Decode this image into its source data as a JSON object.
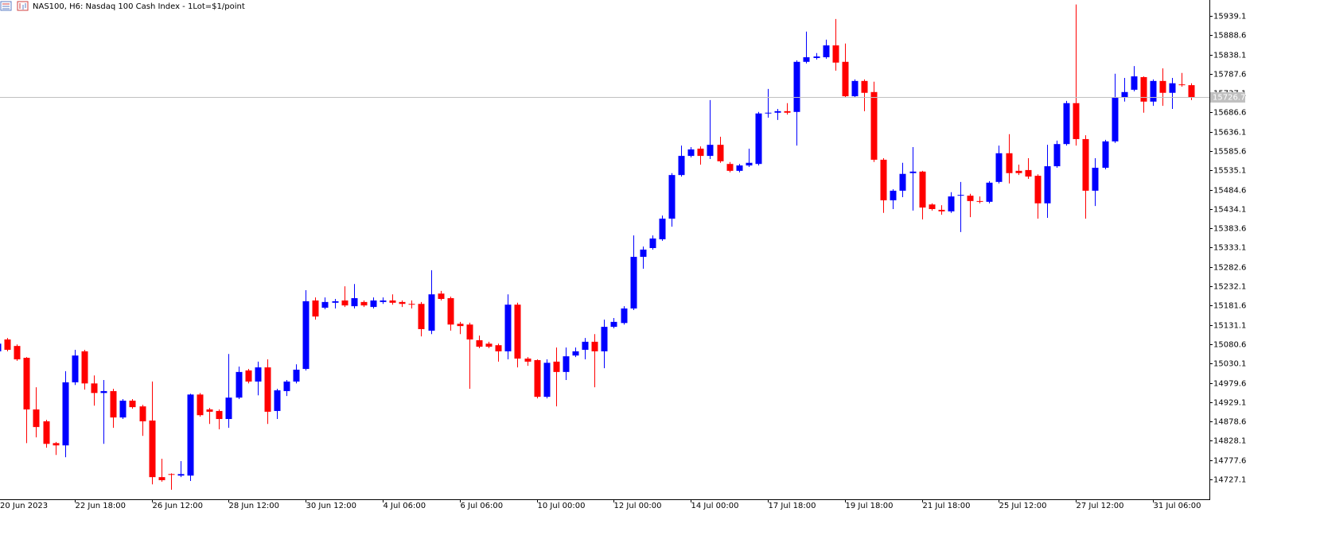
{
  "chart_data": {
    "type": "candlestick",
    "title": "NAS100, H6:  Nasdaq 100 Cash Index - 1Lot=$1/point",
    "up_color": "#0000ff",
    "down_color": "#ff0000",
    "grid": false,
    "bid": 15726.7,
    "ylim": [
      14675.1,
      15980.7
    ],
    "yticks": [
      15939.1,
      15888.6,
      15838.1,
      15787.6,
      15737.1,
      15686.6,
      15636.1,
      15585.6,
      15535.1,
      15484.6,
      15434.1,
      15383.6,
      15333.1,
      15282.6,
      15232.1,
      15181.6,
      15131.1,
      15080.6,
      15030.1,
      14979.6,
      14929.1,
      14878.6,
      14828.1,
      14777.6,
      14727.1
    ],
    "categories": [
      "20 Jun 2023",
      null,
      null,
      null,
      null,
      null,
      null,
      null,
      "22 Jun 18:00",
      null,
      null,
      null,
      null,
      null,
      null,
      null,
      "26 Jun 12:00",
      null,
      null,
      null,
      null,
      null,
      null,
      null,
      "28 Jun 12:00",
      null,
      null,
      null,
      null,
      null,
      null,
      null,
      "30 Jun 12:00",
      null,
      null,
      null,
      null,
      null,
      null,
      null,
      "4 Jul 06:00",
      null,
      null,
      null,
      null,
      null,
      null,
      null,
      "6 Jul 06:00",
      null,
      null,
      null,
      null,
      null,
      null,
      null,
      "10 Jul 00:00",
      null,
      null,
      null,
      null,
      null,
      null,
      null,
      "12 Jul 00:00",
      null,
      null,
      null,
      null,
      null,
      null,
      null,
      "14 Jul 00:00",
      null,
      null,
      null,
      null,
      null,
      null,
      null,
      "17 Jul 18:00",
      null,
      null,
      null,
      null,
      null,
      null,
      null,
      "19 Jul 18:00",
      null,
      null,
      null,
      null,
      null,
      null,
      null,
      "21 Jul 18:00",
      null,
      null,
      null,
      null,
      null,
      null,
      null,
      "25 Jul 12:00",
      null,
      null,
      null,
      null,
      null,
      null,
      null,
      "27 Jul 12:00",
      null,
      null,
      null,
      null,
      null,
      null,
      null,
      "31 Jul 06:00",
      null,
      null,
      null,
      null
    ],
    "ohlc": [
      [
        15062,
        15087,
        15058,
        15082
      ],
      [
        15093,
        15097,
        15062,
        15066
      ],
      [
        15076,
        15080,
        15037,
        15041
      ],
      [
        15045,
        15047,
        14822,
        14910
      ],
      [
        14910,
        14968,
        14837,
        14864
      ],
      [
        14879,
        14883,
        14810,
        14820
      ],
      [
        14822,
        14825,
        14791,
        14816
      ],
      [
        14816,
        15010,
        14785,
        14981
      ],
      [
        14981,
        15066,
        14974,
        15051
      ],
      [
        15062,
        15066,
        14962,
        14978
      ],
      [
        14978,
        14999,
        14920,
        14953
      ],
      [
        14953,
        14987,
        14820,
        14958
      ],
      [
        14958,
        14964,
        14862,
        14889
      ],
      [
        14889,
        14937,
        14885,
        14933
      ],
      [
        14933,
        14937,
        14912,
        14916
      ],
      [
        14918,
        14922,
        14841,
        14879
      ],
      [
        14881,
        14983,
        14714,
        14733
      ],
      [
        14733,
        14781,
        14721,
        14725
      ],
      [
        14741,
        14743,
        14700,
        14739
      ],
      [
        14737,
        14775,
        14733,
        14741
      ],
      [
        14737,
        14951,
        14723,
        14949
      ],
      [
        14949,
        14953,
        14891,
        14895
      ],
      [
        14910,
        14914,
        14872,
        14904
      ],
      [
        14906,
        14910,
        14858,
        14885
      ],
      [
        14885,
        15055,
        14862,
        14941
      ],
      [
        14941,
        15022,
        14937,
        15008
      ],
      [
        15012,
        15016,
        14978,
        14983
      ],
      [
        14983,
        15035,
        14947,
        15020
      ],
      [
        15020,
        15041,
        14872,
        14904
      ],
      [
        14906,
        14964,
        14885,
        14960
      ],
      [
        14958,
        14987,
        14945,
        14983
      ],
      [
        14983,
        15028,
        14978,
        15014
      ],
      [
        15016,
        15222,
        15012,
        15193
      ],
      [
        15195,
        15203,
        15145,
        15153
      ],
      [
        15176,
        15203,
        15172,
        15191
      ],
      [
        15189,
        15199,
        15174,
        15193
      ],
      [
        15195,
        15232,
        15178,
        15182
      ],
      [
        15180,
        15238,
        15174,
        15201
      ],
      [
        15191,
        15195,
        15178,
        15182
      ],
      [
        15178,
        15203,
        15174,
        15195
      ],
      [
        15191,
        15203,
        15186,
        15195
      ],
      [
        15195,
        15211,
        15184,
        15189
      ],
      [
        15191,
        15195,
        15178,
        15186
      ],
      [
        15186,
        15195,
        15174,
        15184
      ],
      [
        15186,
        15191,
        15101,
        15120
      ],
      [
        15116,
        15274,
        15107,
        15211
      ],
      [
        15213,
        15220,
        15195,
        15199
      ],
      [
        15201,
        15205,
        15116,
        15132
      ],
      [
        15134,
        15139,
        15107,
        15128
      ],
      [
        15132,
        15137,
        14964,
        15093
      ],
      [
        15091,
        15103,
        15070,
        15074
      ],
      [
        15082,
        15087,
        15070,
        15074
      ],
      [
        15078,
        15082,
        15035,
        15062
      ],
      [
        15062,
        15211,
        15041,
        15184
      ],
      [
        15184,
        15189,
        15020,
        15043
      ],
      [
        15043,
        15047,
        15024,
        15035
      ],
      [
        15039,
        15041,
        14939,
        14943
      ],
      [
        14943,
        15041,
        14939,
        15032
      ],
      [
        15035,
        15072,
        14918,
        15008
      ],
      [
        15008,
        15072,
        14987,
        15049
      ],
      [
        15051,
        15072,
        15047,
        15062
      ],
      [
        15066,
        15097,
        15041,
        15087
      ],
      [
        15087,
        15107,
        14968,
        15062
      ],
      [
        15062,
        15145,
        15018,
        15126
      ],
      [
        15126,
        15149,
        15122,
        15139
      ],
      [
        15136,
        15180,
        15132,
        15174
      ],
      [
        15174,
        15365,
        15170,
        15309
      ],
      [
        15309,
        15336,
        15278,
        15328
      ],
      [
        15332,
        15365,
        15328,
        15357
      ],
      [
        15355,
        15417,
        15351,
        15409
      ],
      [
        15409,
        15528,
        15388,
        15523
      ],
      [
        15523,
        15600,
        15519,
        15573
      ],
      [
        15573,
        15596,
        15569,
        15590
      ],
      [
        15592,
        15598,
        15550,
        15573
      ],
      [
        15573,
        15719,
        15565,
        15602
      ],
      [
        15602,
        15623,
        15555,
        15559
      ],
      [
        15552,
        15557,
        15530,
        15534
      ],
      [
        15534,
        15552,
        15530,
        15548
      ],
      [
        15548,
        15592,
        15544,
        15555
      ],
      [
        15552,
        15688,
        15548,
        15684
      ],
      [
        15684,
        15748,
        15673,
        15686
      ],
      [
        15686,
        15696,
        15667,
        15690
      ],
      [
        15690,
        15711,
        15681,
        15686
      ],
      [
        15688,
        15823,
        15600,
        15819
      ],
      [
        15819,
        15898,
        15815,
        15831
      ],
      [
        15829,
        15842,
        15825,
        15833
      ],
      [
        15831,
        15877,
        15827,
        15862
      ],
      [
        15862,
        15931,
        15796,
        15817
      ],
      [
        15819,
        15867,
        15727,
        15729
      ],
      [
        15729,
        15773,
        15725,
        15769
      ],
      [
        15769,
        15773,
        15690,
        15738
      ],
      [
        15740,
        15767,
        15557,
        15563
      ],
      [
        15563,
        15567,
        15424,
        15457
      ],
      [
        15457,
        15486,
        15434,
        15482
      ],
      [
        15482,
        15555,
        15465,
        15526
      ],
      [
        15528,
        15596,
        15430,
        15532
      ],
      [
        15532,
        15534,
        15407,
        15438
      ],
      [
        15446,
        15449,
        15430,
        15434
      ],
      [
        15432,
        15444,
        15419,
        15428
      ],
      [
        15428,
        15478,
        15424,
        15467
      ],
      [
        15469,
        15505,
        15374,
        15471
      ],
      [
        15469,
        15474,
        15413,
        15455
      ],
      [
        15455,
        15467,
        15449,
        15453
      ],
      [
        15453,
        15507,
        15449,
        15503
      ],
      [
        15505,
        15600,
        15501,
        15580
      ],
      [
        15580,
        15630,
        15501,
        15528
      ],
      [
        15534,
        15550,
        15523,
        15528
      ],
      [
        15536,
        15567,
        15513,
        15519
      ],
      [
        15521,
        15525,
        15409,
        15449
      ],
      [
        15449,
        15602,
        15411,
        15546
      ],
      [
        15546,
        15613,
        15542,
        15604
      ],
      [
        15604,
        15717,
        15600,
        15711
      ],
      [
        15711,
        15969,
        15600,
        15617
      ],
      [
        15617,
        15627,
        15409,
        15482
      ],
      [
        15482,
        15567,
        15442,
        15542
      ],
      [
        15542,
        15615,
        15538,
        15611
      ],
      [
        15611,
        15788,
        15607,
        15727
      ],
      [
        15727,
        15777,
        15715,
        15740
      ],
      [
        15746,
        15808,
        15742,
        15781
      ],
      [
        15779,
        15781,
        15686,
        15715
      ],
      [
        15715,
        15773,
        15704,
        15769
      ],
      [
        15769,
        15802,
        15704,
        15738
      ],
      [
        15738,
        15777,
        15696,
        15763
      ],
      [
        15760,
        15790,
        15754,
        15758
      ],
      [
        15758,
        15763,
        15719,
        15727
      ]
    ]
  }
}
